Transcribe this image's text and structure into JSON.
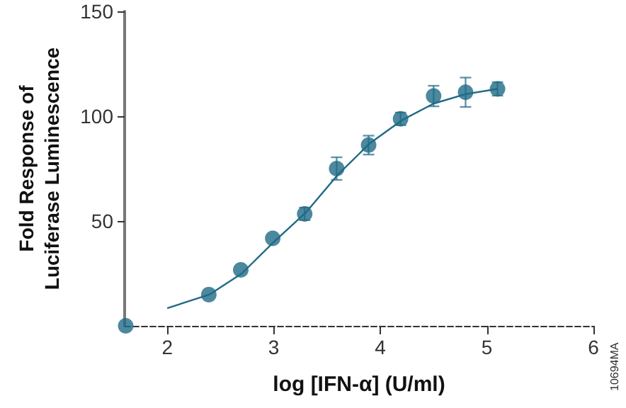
{
  "chart_data": {
    "type": "scatter",
    "xlabel": "log [IFN-α] (U/ml)",
    "ylabel": "Fold Response of\nLuciferase Luminescence",
    "annotations": [
      "10694MA"
    ],
    "xlim": [
      1.6,
      6
    ],
    "xticks": [
      2,
      3,
      4,
      5,
      6
    ],
    "ylim": [
      0,
      150
    ],
    "yticks": [
      50,
      100,
      150
    ],
    "grid": false,
    "series": [
      {
        "color": "#1f6a86",
        "marker": "circle",
        "x": [
          1.61,
          2.39,
          2.69,
          2.99,
          3.29,
          3.59,
          3.89,
          4.19,
          4.5,
          4.8,
          5.1
        ],
        "values": [
          0,
          14.9,
          26.7,
          41.7,
          53.4,
          75,
          86.2,
          98.7,
          109.6,
          111.4,
          113
        ],
        "errors": [
          null,
          null,
          null,
          null,
          3,
          5.4,
          4.5,
          3,
          4.9,
          7,
          3.2
        ]
      },
      {
        "type": "line",
        "color": "#1f6a86",
        "marker": "none",
        "line_style": "solid",
        "x": [
          2.0,
          2.4,
          2.7,
          3.0,
          3.3,
          3.6,
          3.9,
          4.2,
          4.5,
          4.8,
          5.1
        ],
        "values": [
          8.4,
          15,
          25,
          40,
          54,
          72,
          87,
          98,
          106,
          110.5,
          113
        ]
      }
    ]
  }
}
